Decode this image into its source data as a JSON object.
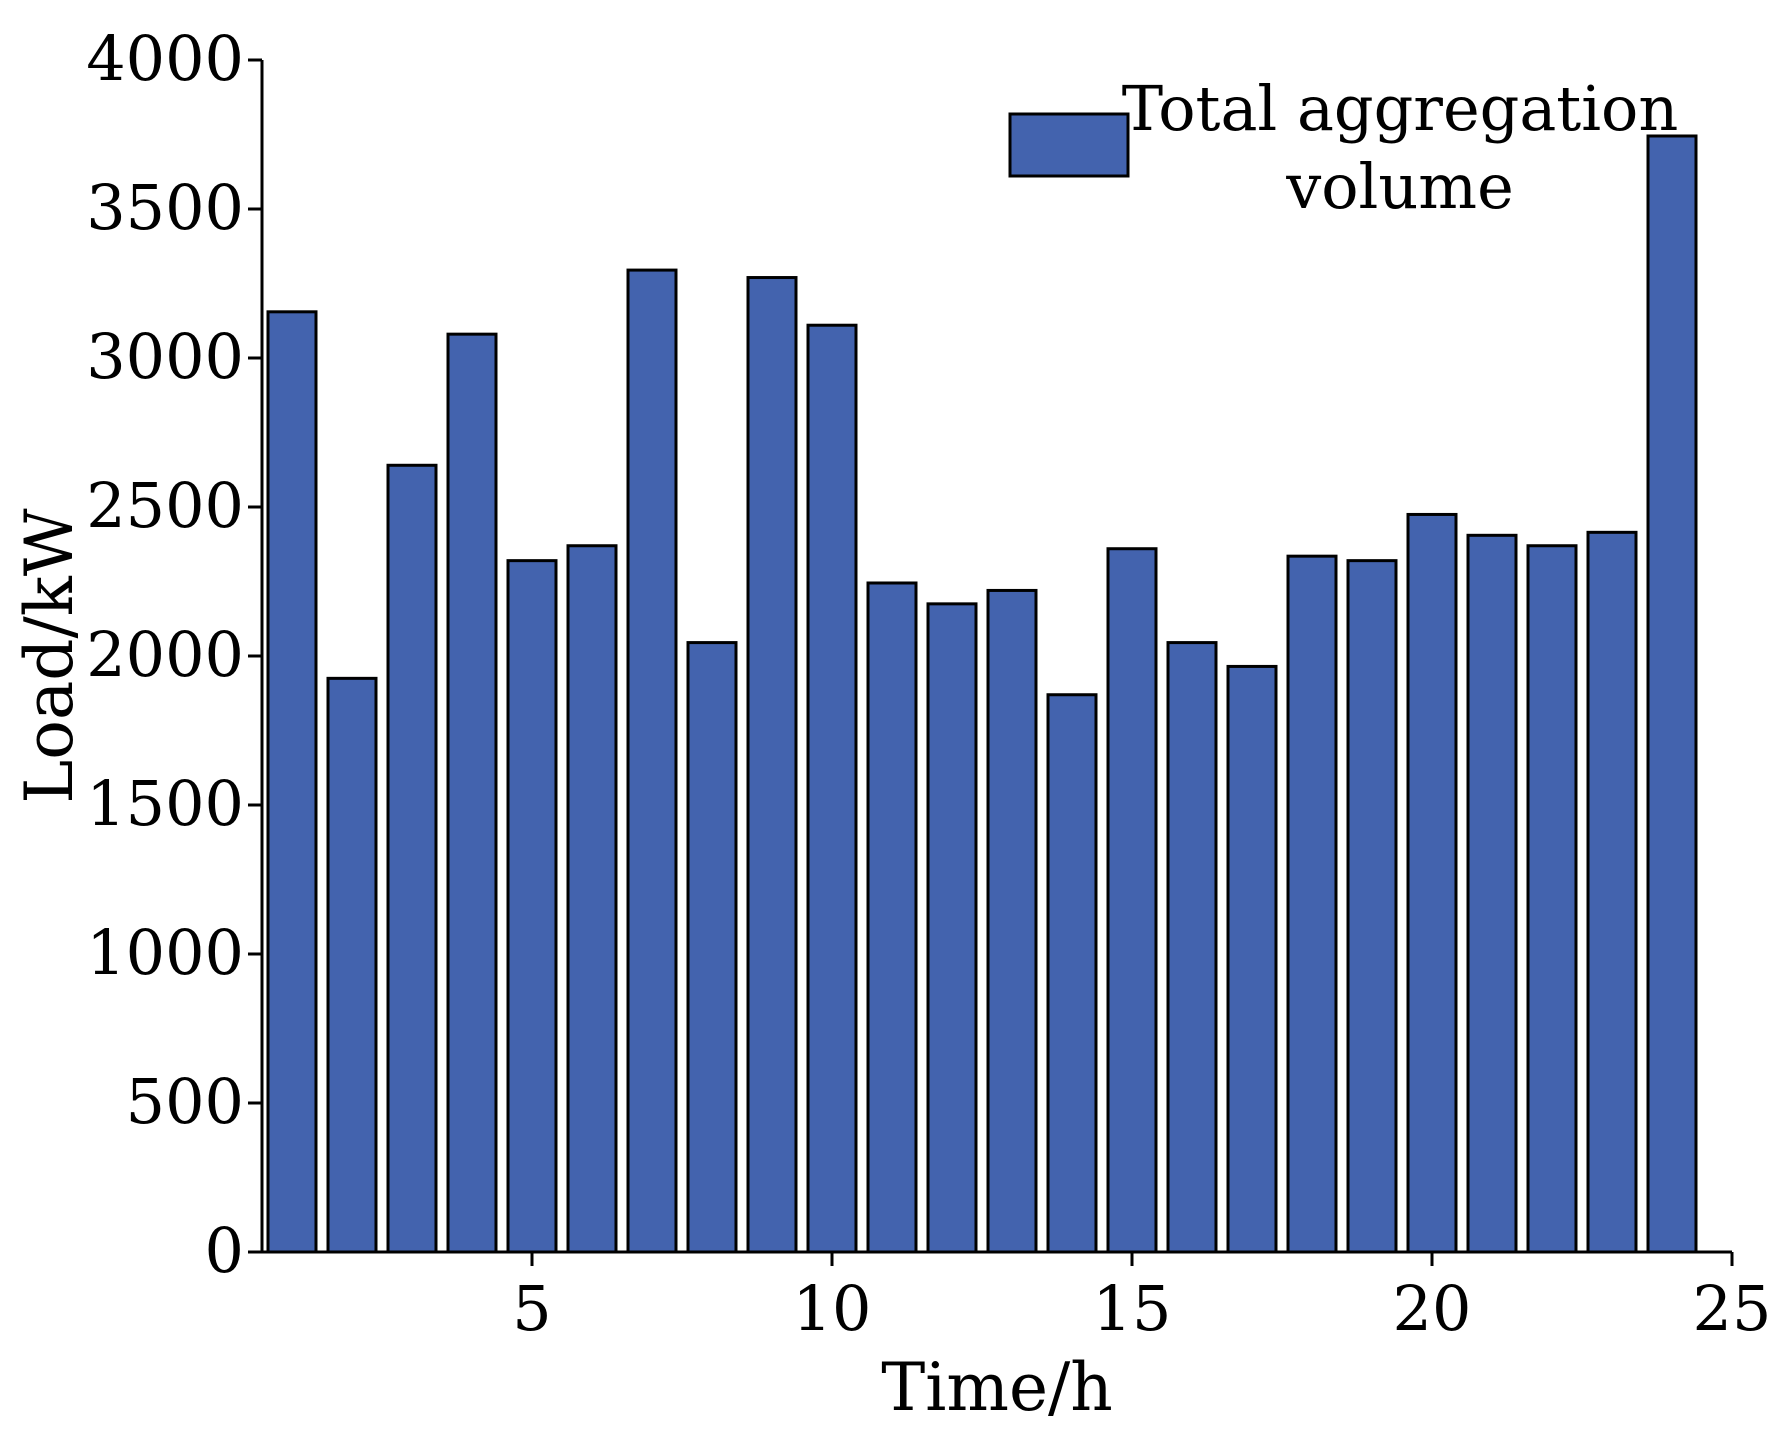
{
  "chart_data": {
    "type": "bar",
    "xlabel": "Time/h",
    "ylabel": "Load/kW",
    "x": [
      1,
      2,
      3,
      4,
      5,
      6,
      7,
      8,
      9,
      10,
      11,
      12,
      13,
      14,
      15,
      16,
      17,
      18,
      19,
      20,
      21,
      22,
      23,
      24
    ],
    "series": [
      {
        "name": "Total aggregation volume",
        "values": [
          3155,
          1925,
          2640,
          3080,
          2320,
          2370,
          3295,
          2045,
          3270,
          3110,
          2245,
          2175,
          2220,
          1870,
          2360,
          2045,
          1965,
          2335,
          2320,
          2475,
          2405,
          2370,
          2415,
          3745
        ]
      }
    ],
    "legend_lines": [
      "Total aggregation",
      "volume"
    ],
    "xlim": [
      0.5,
      25
    ],
    "ylim": [
      0,
      4000
    ],
    "xticks": [
      5,
      10,
      15,
      20,
      25
    ],
    "yticks": [
      0,
      500,
      1000,
      1500,
      2000,
      2500,
      3000,
      3500,
      4000
    ],
    "colors": {
      "bar": "#4363ae",
      "edge": "#000000"
    },
    "legend_position": "top-right",
    "grid": false
  }
}
